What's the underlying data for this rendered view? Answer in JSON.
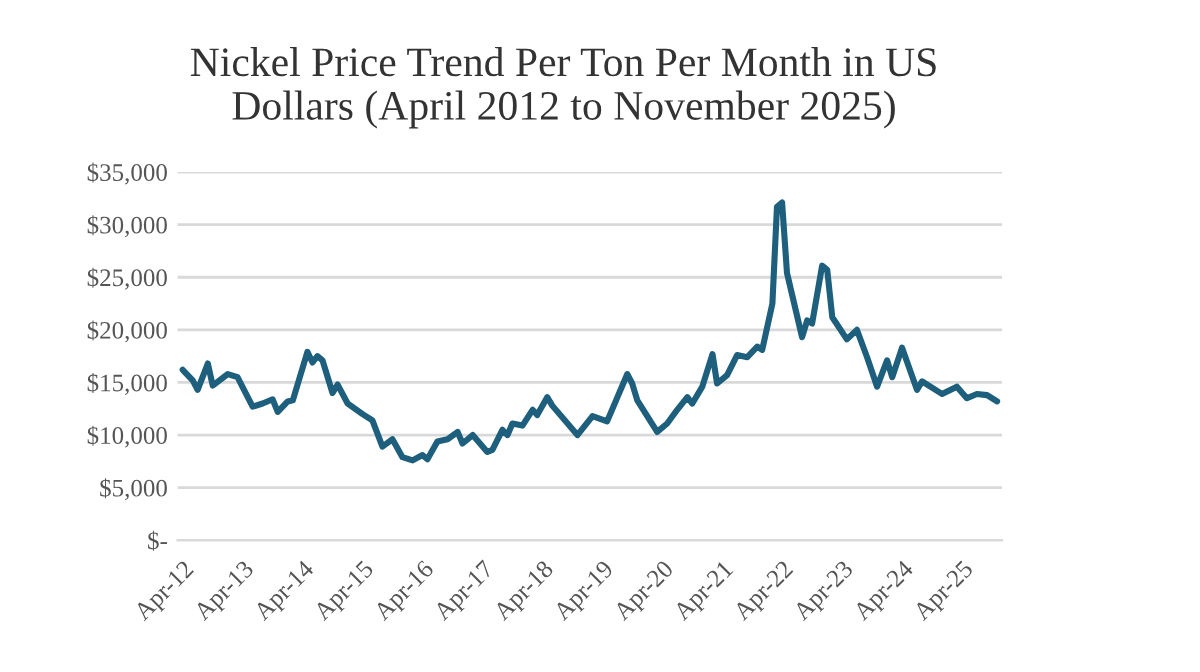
{
  "chart_data": {
    "type": "line",
    "title": "Nickel Price Trend Per Ton Per Month in US\nDollars (April 2012 to November 2025)",
    "x": [
      "2012-04",
      "2012-06",
      "2012-07",
      "2012-09",
      "2012-10",
      "2013-01",
      "2013-03",
      "2013-06",
      "2013-08",
      "2013-10",
      "2013-11",
      "2014-01",
      "2014-02",
      "2014-05",
      "2014-06",
      "2014-07",
      "2014-08",
      "2014-10",
      "2014-11",
      "2015-01",
      "2015-04",
      "2015-06",
      "2015-08",
      "2015-10",
      "2015-12",
      "2016-02",
      "2016-04",
      "2016-05",
      "2016-07",
      "2016-09",
      "2016-11",
      "2016-12",
      "2017-02",
      "2017-05",
      "2017-06",
      "2017-08",
      "2017-09",
      "2017-10",
      "2017-12",
      "2018-02",
      "2018-03",
      "2018-05",
      "2018-06",
      "2018-11",
      "2019-02",
      "2019-05",
      "2019-09",
      "2019-10",
      "2019-11",
      "2020-03",
      "2020-05",
      "2020-07",
      "2020-09",
      "2020-10",
      "2020-12",
      "2021-02",
      "2021-03",
      "2021-05",
      "2021-07",
      "2021-09",
      "2021-11",
      "2021-12",
      "2022-02",
      "2022-03",
      "2022-04",
      "2022-05",
      "2022-08",
      "2022-09",
      "2022-10",
      "2022-12",
      "2023-01",
      "2023-02",
      "2023-05",
      "2023-07",
      "2023-09",
      "2023-11",
      "2024-01",
      "2024-02",
      "2024-04",
      "2024-07",
      "2024-08",
      "2024-12",
      "2025-03",
      "2025-05",
      "2025-07",
      "2025-09",
      "2025-11"
    ],
    "series": [
      {
        "color": "#1d5f7c",
        "values": [
          16200,
          15200,
          14300,
          16800,
          14700,
          15800,
          15500,
          12700,
          13000,
          13400,
          12200,
          13200,
          13300,
          17900,
          16900,
          17500,
          17100,
          14000,
          14800,
          13000,
          12000,
          11400,
          8900,
          9600,
          7900,
          7600,
          8100,
          7700,
          9400,
          9600,
          10300,
          9200,
          10000,
          8400,
          8600,
          10500,
          10000,
          11100,
          10900,
          12400,
          11900,
          13600,
          12800,
          10000,
          11800,
          11300,
          15800,
          14900,
          13300,
          10300,
          11100,
          12400,
          13600,
          13000,
          14600,
          17700,
          14900,
          15700,
          17600,
          17400,
          18400,
          18100,
          22500,
          31700,
          32100,
          25400,
          19300,
          20900,
          20600,
          26100,
          25700,
          21200,
          19100,
          20000,
          17400,
          14600,
          17100,
          15500,
          18300,
          14300,
          15100,
          13900,
          14600,
          13500,
          13900,
          13800,
          13200
        ]
      }
    ],
    "xlim": [
      "2012-03",
      "2025-12"
    ],
    "xticks": [
      {
        "value": "2012-04",
        "label": "Apr-12"
      },
      {
        "value": "2013-04",
        "label": "Apr-13"
      },
      {
        "value": "2014-04",
        "label": "Apr-14"
      },
      {
        "value": "2015-04",
        "label": "Apr-15"
      },
      {
        "value": "2016-04",
        "label": "Apr-16"
      },
      {
        "value": "2017-04",
        "label": "Apr-17"
      },
      {
        "value": "2018-04",
        "label": "Apr-18"
      },
      {
        "value": "2019-04",
        "label": "Apr-19"
      },
      {
        "value": "2020-04",
        "label": "Apr-20"
      },
      {
        "value": "2021-04",
        "label": "Apr-21"
      },
      {
        "value": "2022-04",
        "label": "Apr-22"
      },
      {
        "value": "2023-04",
        "label": "Apr-23"
      },
      {
        "value": "2024-04",
        "label": "Apr-24"
      },
      {
        "value": "2025-04",
        "label": "Apr-25"
      }
    ],
    "ylim": [
      0,
      35000
    ],
    "yticks": [
      {
        "value": 0,
        "label": "$-"
      },
      {
        "value": 5000,
        "label": "$5,000"
      },
      {
        "value": 10000,
        "label": "$10,000"
      },
      {
        "value": 15000,
        "label": "$15,000"
      },
      {
        "value": 20000,
        "label": "$20,000"
      },
      {
        "value": 25000,
        "label": "$25,000"
      },
      {
        "value": 30000,
        "label": "$30,000"
      },
      {
        "value": 35000,
        "label": "$35,000"
      }
    ],
    "grid": "y",
    "marker": "none",
    "line_style": "solid"
  }
}
